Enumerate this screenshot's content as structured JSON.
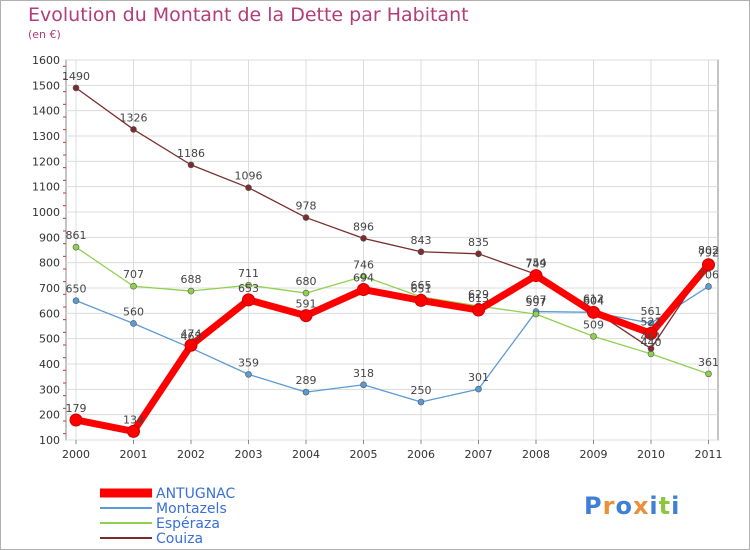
{
  "header": {
    "title": "Evolution du Montant de la Dette par Habitant",
    "unit": "(en €)"
  },
  "logo": {
    "text": "Proxiti",
    "letters": [
      {
        "ch": "P",
        "color": "#3f7fd6"
      },
      {
        "ch": "r",
        "color": "#e8913a"
      },
      {
        "ch": "o",
        "color": "#3f7fd6"
      },
      {
        "ch": "x",
        "color": "#e8913a"
      },
      {
        "ch": "i",
        "color": "#3f7fd6"
      },
      {
        "ch": "t",
        "color": "#8cc63f"
      },
      {
        "ch": "i",
        "color": "#3f7fd6"
      }
    ]
  },
  "chart_data": {
    "type": "line",
    "x": [
      "2000",
      "2001",
      "2002",
      "2003",
      "2004",
      "2005",
      "2006",
      "2007",
      "2008",
      "2009",
      "2010",
      "2011"
    ],
    "ylim": [
      100,
      1600
    ],
    "yticks": [
      100,
      200,
      300,
      400,
      500,
      600,
      700,
      800,
      900,
      1000,
      1100,
      1200,
      1300,
      1400,
      1500,
      1600
    ],
    "grid": true,
    "legend_position": "bottom-left",
    "series": [
      {
        "name": "ANTUGNAC",
        "color": "#ff0000",
        "width": 7,
        "marker": 6,
        "values": [
          179,
          134,
          474,
          653,
          591,
          694,
          651,
          613,
          749,
          604,
          521,
          792
        ]
      },
      {
        "name": "Montazels",
        "color": "#5b9bd5",
        "width": 1.3,
        "marker": 3,
        "values": [
          650,
          560,
          463,
          359,
          289,
          318,
          250,
          301,
          607,
          604,
          561,
          706
        ]
      },
      {
        "name": "Espéraza",
        "color": "#8fd14f",
        "width": 1.3,
        "marker": 3,
        "values": [
          861,
          707,
          688,
          711,
          680,
          746,
          665,
          629,
          597,
          509,
          440,
          361
        ]
      },
      {
        "name": "Couiza",
        "color": "#7b2d2d",
        "width": 1.3,
        "marker": 3,
        "values": [
          1490,
          1326,
          1186,
          1096,
          978,
          896,
          843,
          835,
          754,
          612,
          461,
          802
        ]
      }
    ]
  }
}
